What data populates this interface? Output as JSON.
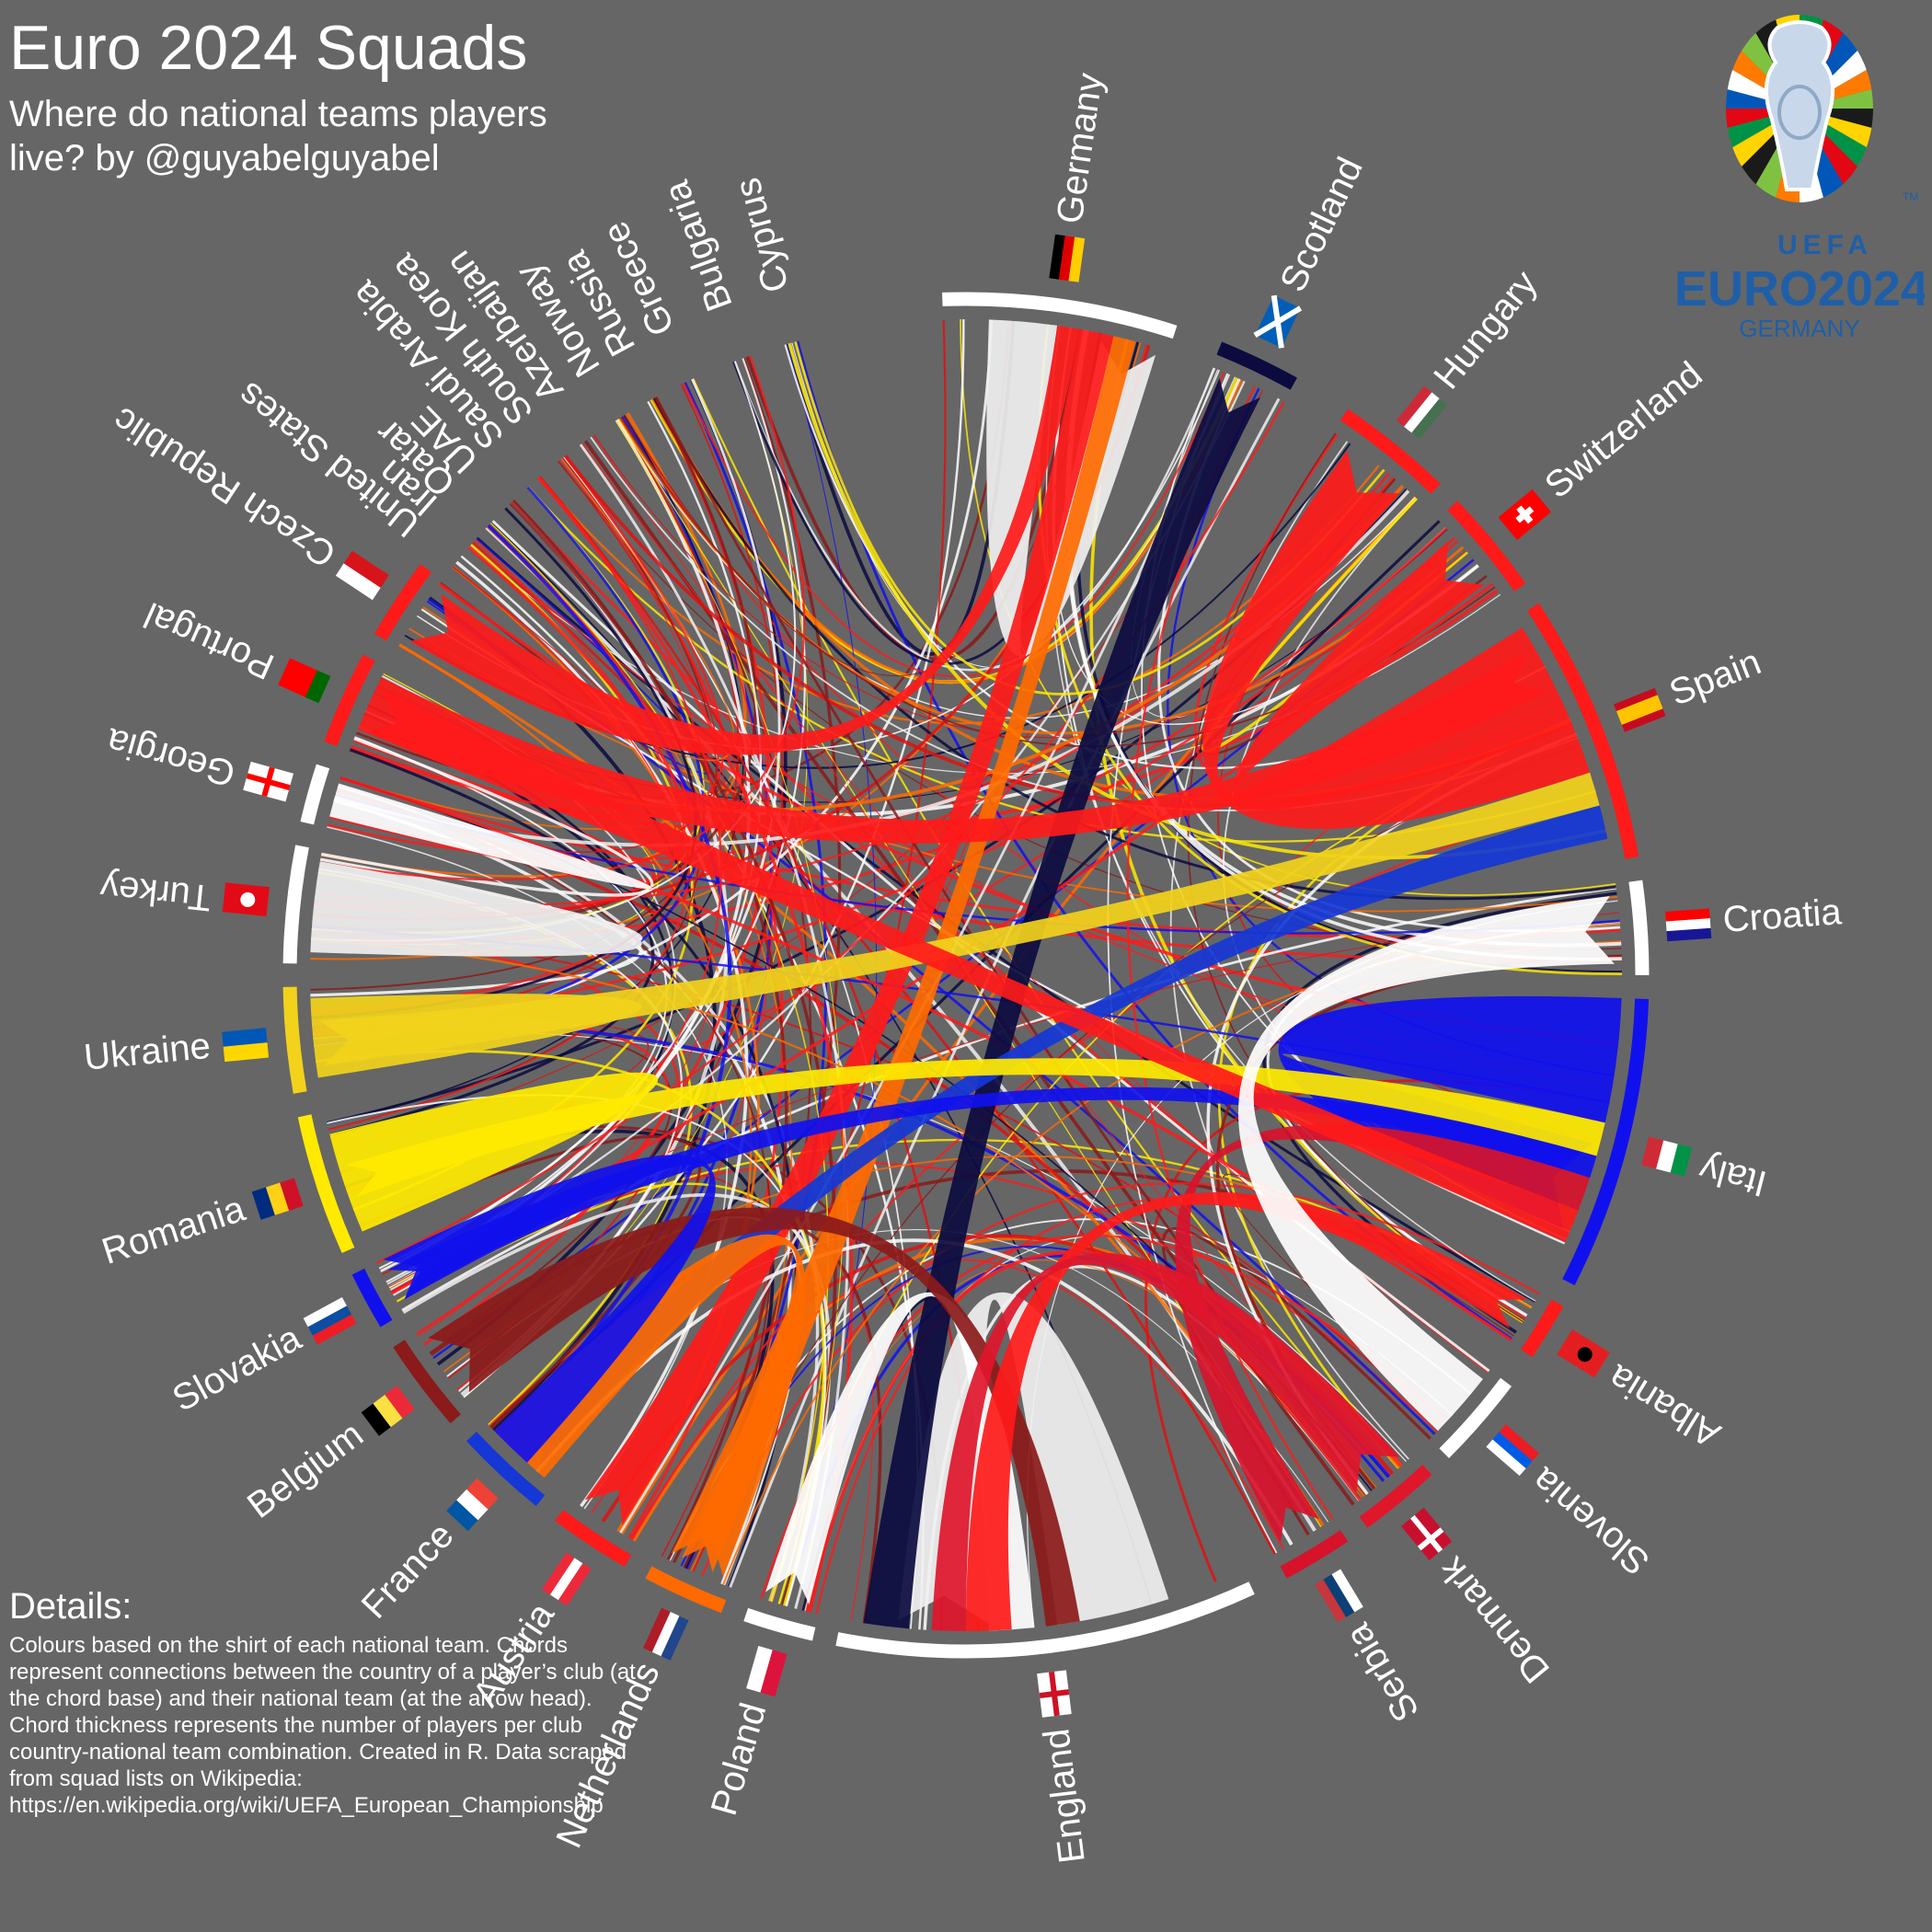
{
  "title": "Euro 2024 Squads",
  "subtitle": "Where do national teams players live? by @guyabelguyabel",
  "details_heading": "Details:",
  "details_text": "Colours based on the shirt of each national team. Chords represent connections between the country of a player’s club (at the chord base) and their national team (at the arrow head). Chord thickness represents the number of players per club country-national team combination. Created in R. Data scraped from squad lists on Wikipedia:",
  "details_url": "https://en.wikipedia.org/wiki/UEFA_European_Championship",
  "logo": {
    "line1": "UEFA",
    "line2": "EURO2024",
    "line3": "GERMANY",
    "tm": "TM",
    "color": "#1f5fa8"
  },
  "chart_data": {
    "type": "chord",
    "sectors": [
      {
        "name": "Germany",
        "color": "#ffffff",
        "flag": "germany-flag"
      },
      {
        "name": "Scotland",
        "color": "#0b0b40",
        "flag": "scotland-flag"
      },
      {
        "name": "Hungary",
        "color": "#ff1a1a",
        "flag": "hungary-flag"
      },
      {
        "name": "Switzerland",
        "color": "#ff1a1a",
        "flag": "switzerland-flag"
      },
      {
        "name": "Spain",
        "color": "#ff1a1a",
        "flag": "spain-flag"
      },
      {
        "name": "Croatia",
        "color": "#ffffff",
        "flag": "croatia-flag"
      },
      {
        "name": "Italy",
        "color": "#1010ee",
        "flag": "italy-flag"
      },
      {
        "name": "Albania",
        "color": "#ff1a1a",
        "flag": "albania-flag"
      },
      {
        "name": "Slovenia",
        "color": "#ffffff",
        "flag": "slovenia-flag"
      },
      {
        "name": "Denmark",
        "color": "#e0162b",
        "flag": "denmark-flag"
      },
      {
        "name": "Serbia",
        "color": "#d7122b",
        "flag": "serbia-flag"
      },
      {
        "name": "England",
        "color": "#ffffff",
        "flag": "england-flag"
      },
      {
        "name": "Poland",
        "color": "#ffffff",
        "flag": "poland-flag"
      },
      {
        "name": "Netherlands",
        "color": "#ff6a00",
        "flag": "netherlands-flag"
      },
      {
        "name": "Austria",
        "color": "#ff1a1a",
        "flag": "austria-flag"
      },
      {
        "name": "France",
        "color": "#1437d6",
        "flag": "france-flag"
      },
      {
        "name": "Belgium",
        "color": "#8b1a1a",
        "flag": "belgium-flag"
      },
      {
        "name": "Slovakia",
        "color": "#1010ee",
        "flag": "slovakia-flag"
      },
      {
        "name": "Romania",
        "color": "#ffea00",
        "flag": "romania-flag"
      },
      {
        "name": "Ukraine",
        "color": "#f2d21b",
        "flag": "ukraine-flag"
      },
      {
        "name": "Turkey",
        "color": "#ffffff",
        "flag": "turkey-flag"
      },
      {
        "name": "Georgia",
        "color": "#ffffff",
        "flag": "georgia-flag"
      },
      {
        "name": "Portugal",
        "color": "#ff1a1a",
        "flag": "portugal-flag"
      },
      {
        "name": "Czech Republic",
        "color": "#ff1a1a",
        "flag": "czech-flag"
      },
      {
        "name": "United States",
        "color": "#ffffff",
        "flag": ""
      },
      {
        "name": "Iran",
        "color": "#ffffff",
        "flag": ""
      },
      {
        "name": "Qatar",
        "color": "#ffffff",
        "flag": ""
      },
      {
        "name": "UAE",
        "color": "#ffffff",
        "flag": ""
      },
      {
        "name": "Saudi Arabia",
        "color": "#ffffff",
        "flag": ""
      },
      {
        "name": "South Korea",
        "color": "#ffffff",
        "flag": ""
      },
      {
        "name": "Azerbaijan",
        "color": "#ffffff",
        "flag": ""
      },
      {
        "name": "Norway",
        "color": "#ffffff",
        "flag": ""
      },
      {
        "name": "Russia",
        "color": "#ffffff",
        "flag": ""
      },
      {
        "name": "Greece",
        "color": "#ffffff",
        "flag": ""
      },
      {
        "name": "Bulgaria",
        "color": "#ffffff",
        "flag": ""
      },
      {
        "name": "Cyprus",
        "color": "#ffffff",
        "flag": ""
      }
    ]
  }
}
